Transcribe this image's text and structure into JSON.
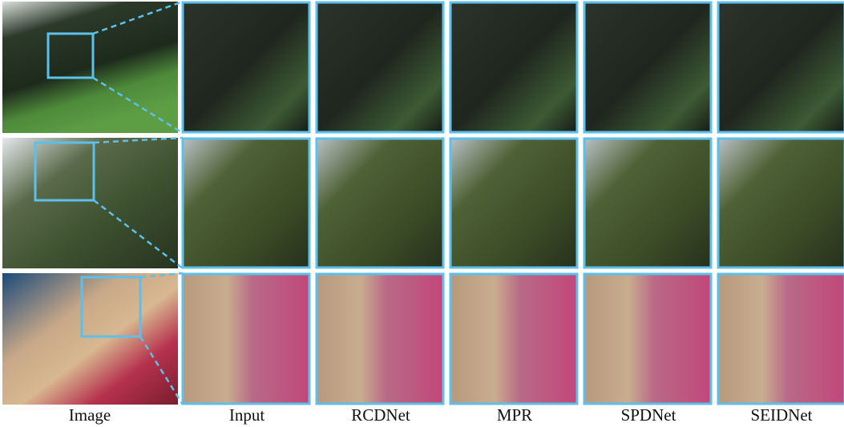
{
  "columns": [
    "Image",
    "Input",
    "RCDNet",
    "MPR",
    "SPDNet",
    "SEIDNet"
  ]
}
